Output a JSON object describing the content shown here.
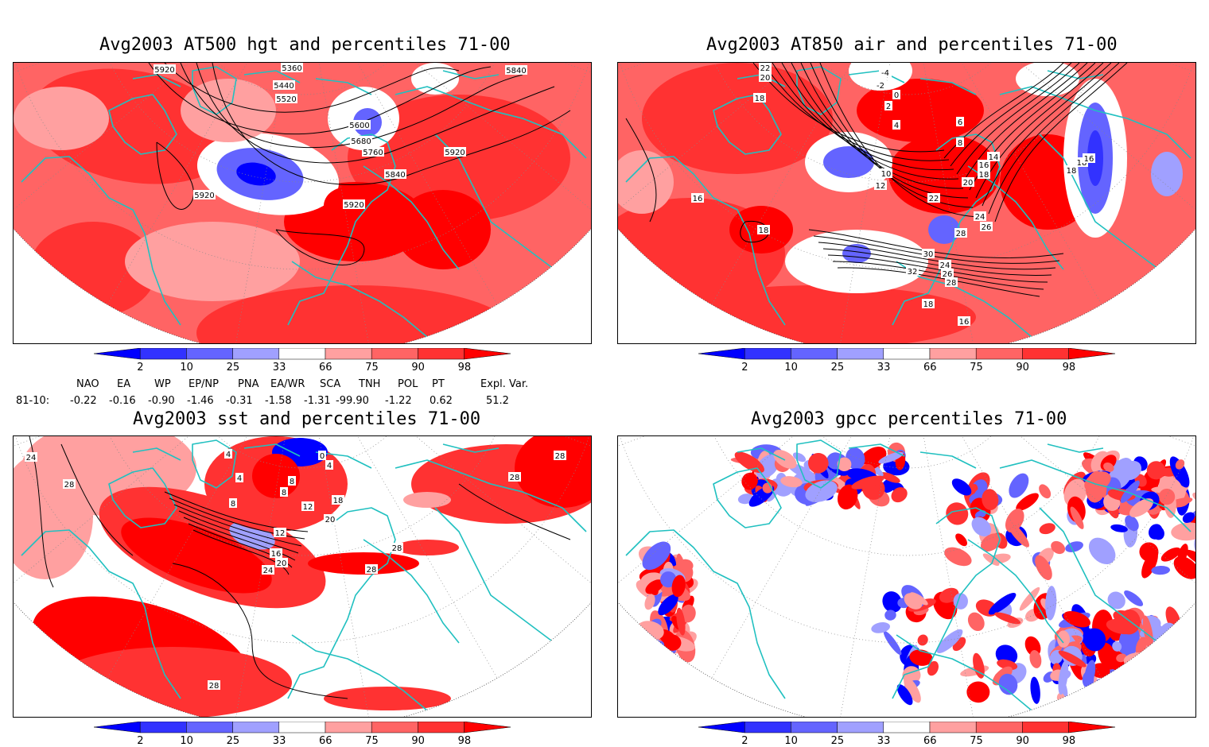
{
  "panels": {
    "p1": {
      "title": "Avg2003 AT500 hgt and percentiles 71-00",
      "contour_labels": [
        "5920",
        "5360",
        "5440",
        "5520",
        "5600",
        "5680",
        "5760",
        "5840",
        "5920",
        "5920",
        "5920",
        "5840"
      ]
    },
    "p2": {
      "title": "Avg2003 AT850 air and percentiles 71-00",
      "contour_labels": [
        "22",
        "20",
        "18",
        "-2",
        "-4",
        "0",
        "2",
        "4",
        "6",
        "8",
        "10",
        "12",
        "14",
        "16",
        "18",
        "16",
        "18",
        "20",
        "22",
        "24",
        "26",
        "28",
        "30",
        "32",
        "24",
        "26",
        "28",
        "18",
        "16",
        "18",
        "18",
        "16"
      ]
    },
    "p3": {
      "title": "Avg2003 sst and percentiles 71-00",
      "contour_labels": [
        "24",
        "28",
        "4",
        "4",
        "8",
        "8",
        "12",
        "12",
        "16",
        "20",
        "24",
        "28",
        "28",
        "28",
        "28",
        "0",
        "4",
        "8",
        "18",
        "20",
        "28"
      ]
    },
    "p4": {
      "title": "Avg2003 gpcc percentiles 71-00"
    }
  },
  "colorbar": {
    "labels": [
      "2",
      "10",
      "25",
      "33",
      "66",
      "75",
      "90",
      "98"
    ],
    "colors": [
      "#0000ff",
      "#3232ff",
      "#6464ff",
      "#a0a0ff",
      "#ffffff",
      "#ffa0a0",
      "#ff6464",
      "#ff3232",
      "#ff0000"
    ]
  },
  "indices": {
    "headers": [
      "NAO",
      "EA",
      "WP",
      "EP/NP",
      "PNA",
      "EA/WR",
      "SCA",
      "TNH",
      "POL",
      "PT",
      "Expl. Var."
    ],
    "row_label": "81-10:",
    "values": [
      "-0.22",
      "-0.16",
      "-0.90",
      "-1.46",
      "-0.31",
      "-1.58",
      "-1.31",
      "-99.90",
      "-1.22",
      "0.62",
      "51.2"
    ]
  },
  "style": {
    "land_outline": "#20c0c0",
    "contour": "#000000",
    "grid": "#888888"
  }
}
